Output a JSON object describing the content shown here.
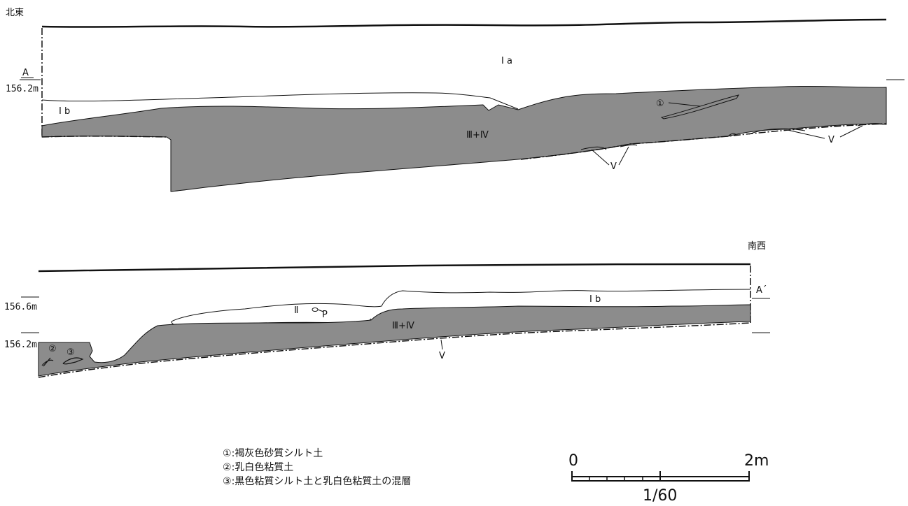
{
  "upper_section": {
    "direction_label": "北東",
    "point_label": "A",
    "elevation_label": "156.2m",
    "layers": {
      "ia": "I a",
      "ib": "I b",
      "iii_iv": "Ⅲ+Ⅳ",
      "v_right": "V",
      "v_middle": "V"
    },
    "marker_1": "①"
  },
  "lower_section": {
    "direction_label": "南西",
    "point_label": "A´",
    "elevation_upper": "156.6m",
    "elevation_lower": "156.2m",
    "layers": {
      "ii": "Ⅱ",
      "p": "P",
      "ib": "I b",
      "iii_iv": "Ⅲ+Ⅳ",
      "v": "V"
    },
    "marker_2": "②",
    "marker_3": "③"
  },
  "legend": [
    {
      "marker": "①",
      "text": ":褐灰色砂質シルト土"
    },
    {
      "marker": "②",
      "text": ":乳白色粘質土"
    },
    {
      "marker": "③",
      "text": ":黒色粘質シルト土と乳白色粘質土の混層"
    }
  ],
  "scale_bar": {
    "start": "0",
    "end": "2m",
    "ratio": "1/60"
  },
  "colors": {
    "fill_gray": "#8c8c8c",
    "line": "#111111"
  }
}
